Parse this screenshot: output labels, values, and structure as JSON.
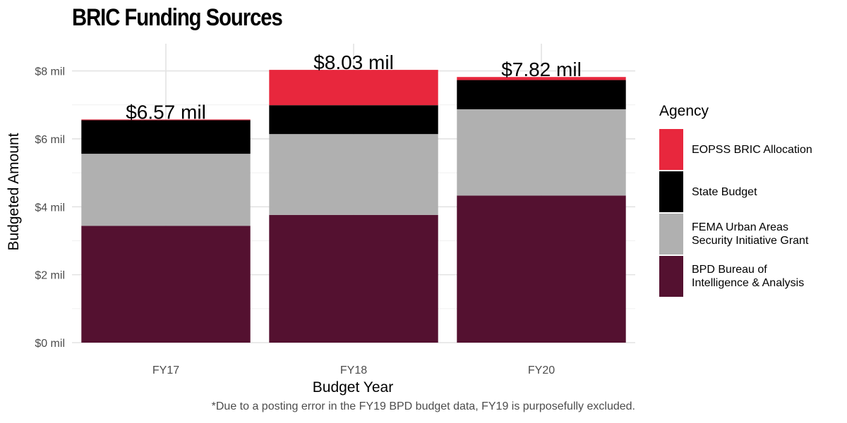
{
  "chart_data": {
    "type": "bar",
    "stacked": true,
    "title": "BRIC Funding Sources",
    "xlabel": "Budget Year",
    "ylabel": "Budgeted Amount",
    "ylim": [
      0,
      8.8
    ],
    "yticks": [
      0,
      2,
      4,
      6,
      8
    ],
    "ytick_labels": [
      "$0 mil",
      "$2 mil",
      "$4 mil",
      "$6 mil",
      "$8 mil"
    ],
    "categories": [
      "FY17",
      "FY18",
      "FY20"
    ],
    "totals": [
      6.57,
      8.03,
      7.82
    ],
    "total_labels": [
      "$6.57 mil",
      "$8.03 mil",
      "$7.82 mil"
    ],
    "series": [
      {
        "name": "BPD Bureau of\nIntelligence & Analysis",
        "color": "#541130",
        "values": [
          3.44,
          3.76,
          4.33
        ]
      },
      {
        "name": "FEMA Urban Areas\nSecurity Initiative Grant",
        "color": "#b0b0b0",
        "values": [
          2.12,
          2.38,
          2.54
        ]
      },
      {
        "name": "State Budget",
        "color": "#000000",
        "values": [
          0.99,
          0.85,
          0.86
        ]
      },
      {
        "name": "EOPSS BRIC Allocation",
        "color": "#e8273d",
        "values": [
          0.02,
          1.04,
          0.09
        ]
      }
    ],
    "legend_title": "Agency",
    "legend_position": "right",
    "grid": true
  },
  "footnote": "*Due to a posting error in the FY19 BPD budget data, FY19 is purposefully excluded."
}
